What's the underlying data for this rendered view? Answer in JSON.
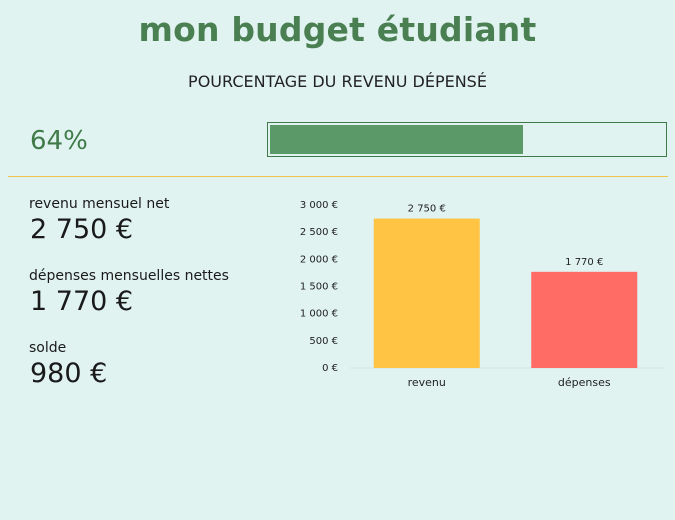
{
  "header": {
    "title": "mon budget étudiant",
    "subtitle": "POURCENTAGE DU REVENU DÉPENSÉ"
  },
  "progress": {
    "label": "64%",
    "fraction": 0.64,
    "fill_color": "#5b9a68",
    "border_color": "#3f7a48"
  },
  "summary": {
    "income_label": "revenu mensuel net",
    "income_value": "2 750 €",
    "expenses_label": "dépenses mensuelles nettes",
    "expenses_value": "1 770 €",
    "balance_label": "solde",
    "balance_value": "980 €"
  },
  "chart_data": {
    "type": "bar",
    "categories": [
      "revenu",
      "dépenses"
    ],
    "values": [
      2750,
      1770
    ],
    "value_labels": [
      "2 750 €",
      "1 770 €"
    ],
    "colors": [
      "#ffc443",
      "#ff6b65"
    ],
    "yticks": [
      0,
      500,
      1000,
      1500,
      2000,
      2500,
      3000
    ],
    "ytick_labels": [
      "0 €",
      "500 €",
      "1 000 €",
      "1 500 €",
      "2 000 €",
      "2 500 €",
      "3 000 €"
    ],
    "ylim": [
      0,
      3000
    ],
    "grid": false,
    "legend": "none"
  }
}
